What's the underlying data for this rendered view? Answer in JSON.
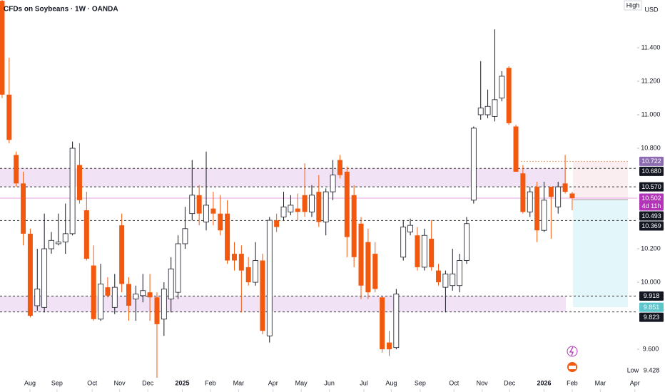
{
  "chart_data": {
    "type": "candlestick",
    "title": "CFDs on Soybeans · 1W · OANDA",
    "currency": "USD",
    "high_label": "High",
    "low_label": "Low",
    "low_value": 9.428,
    "up_color": "#ffffff",
    "down_color": "#f2590f",
    "ohlc": {
      "open": [
        11.68,
        11.12,
        10.76,
        10.59,
        10.29,
        9.86,
        9.85,
        10.2,
        10.23,
        10.24,
        10.29,
        10.7,
        10.43,
        10.1,
        9.78,
        9.97,
        9.85,
        10.34,
        9.99,
        9.9,
        9.92,
        9.94,
        9.91,
        9.78,
        9.9,
        9.94,
        10.23,
        10.41,
        10.52,
        10.36,
        10.44,
        10.41,
        10.41,
        10.17,
        10.17,
        10.09,
        10.0,
        10.13,
        9.68,
        10.37,
        10.39,
        10.42,
        10.44,
        10.52,
        10.42,
        10.54,
        10.36,
        10.54,
        10.73,
        10.66,
        10.52,
        10.35,
        10.24,
        10.17,
        9.91,
        9.64,
        9.61,
        10.15,
        10.3,
        10.28,
        10.09,
        10.26,
        10.07,
        9.97,
        9.98,
        9.98,
        10.13,
        10.49,
        11.0,
        11.0,
        10.99,
        11.1,
        11.28,
        10.93,
        10.65,
        10.42,
        10.57,
        10.31,
        10.57,
        10.45,
        10.59,
        10.53
      ],
      "high": [
        11.69,
        11.34,
        10.78,
        10.66,
        10.32,
        10.2,
        10.41,
        10.3,
        10.41,
        10.47,
        10.84,
        10.83,
        10.54,
        10.22,
        10.11,
        10.03,
        10.05,
        10.41,
        10.03,
        9.98,
        10.05,
        10.05,
        9.94,
        10.0,
        10.15,
        10.28,
        10.45,
        10.73,
        10.58,
        10.78,
        10.54,
        10.52,
        10.49,
        10.24,
        10.22,
        10.15,
        10.24,
        10.17,
        10.39,
        10.41,
        10.54,
        10.52,
        10.53,
        10.71,
        10.58,
        10.64,
        10.56,
        10.73,
        10.76,
        10.69,
        10.58,
        10.39,
        10.32,
        10.24,
        9.92,
        9.71,
        9.96,
        10.37,
        10.38,
        10.33,
        10.32,
        10.37,
        10.11,
        10.07,
        10.2,
        10.17,
        10.39,
        10.93,
        11.32,
        11.15,
        11.51,
        11.26,
        11.29,
        10.94,
        10.7,
        10.57,
        10.6,
        10.6,
        10.57,
        10.6,
        10.76,
        10.54
      ],
      "low": [
        11.1,
        10.83,
        10.57,
        10.22,
        9.79,
        9.83,
        9.82,
        10.17,
        10.22,
        10.17,
        10.28,
        10.47,
        10.13,
        9.77,
        9.77,
        9.91,
        9.81,
        9.94,
        9.77,
        9.77,
        9.88,
        9.77,
        9.43,
        9.68,
        9.82,
        9.9,
        10.2,
        10.37,
        10.34,
        10.31,
        10.34,
        10.28,
        10.11,
        10.07,
        9.82,
        9.98,
        9.98,
        9.69,
        9.64,
        10.3,
        10.37,
        10.4,
        10.37,
        10.39,
        10.39,
        10.33,
        10.28,
        10.49,
        10.62,
        10.15,
        10.09,
        9.9,
        9.9,
        9.94,
        9.58,
        9.56,
        9.6,
        10.13,
        10.28,
        10.07,
        10.07,
        10.07,
        9.98,
        9.82,
        9.95,
        9.94,
        10.11,
        10.47,
        10.97,
        10.98,
        10.96,
        11.08,
        10.94,
        10.66,
        10.41,
        10.39,
        10.24,
        10.3,
        10.26,
        10.41,
        10.53,
        10.43
      ],
      "close": [
        11.12,
        10.85,
        10.59,
        10.29,
        9.8,
        9.96,
        10.2,
        10.25,
        10.24,
        10.29,
        10.8,
        10.49,
        10.14,
        9.78,
        9.99,
        9.92,
        9.97,
        9.99,
        9.86,
        9.93,
        9.95,
        9.91,
        9.75,
        9.96,
        10.08,
        10.23,
        10.32,
        10.52,
        10.41,
        10.46,
        10.41,
        10.31,
        10.13,
        10.13,
        10.07,
        10.0,
        10.13,
        9.71,
        10.37,
        10.33,
        10.45,
        10.46,
        10.42,
        10.42,
        10.52,
        10.36,
        10.54,
        10.64,
        10.64,
        10.27,
        10.15,
        9.98,
        9.94,
        9.96,
        9.6,
        9.6,
        9.93,
        10.33,
        10.34,
        10.09,
        10.28,
        10.09,
        10.0,
        10.05,
        10.05,
        10.13,
        10.35,
        10.92,
        11.04,
        11.05,
        11.09,
        11.23,
        10.95,
        10.66,
        10.42,
        10.54,
        10.31,
        10.49,
        10.51,
        10.57,
        10.54,
        10.502
      ]
    },
    "xlim": [
      -0.3,
      87.9
    ],
    "xticks": [
      {
        "value": 3.96,
        "label": "Aug"
      },
      {
        "value": 7.8,
        "label": "Sep"
      },
      {
        "value": 12.8,
        "label": "Oct"
      },
      {
        "value": 16.7,
        "label": "Nov"
      },
      {
        "value": 20.7,
        "label": "Dec"
      },
      {
        "value": 25.6,
        "label": "2025",
        "bold": true
      },
      {
        "value": 29.6,
        "label": "Feb"
      },
      {
        "value": 33.6,
        "label": "Mar"
      },
      {
        "value": 38.5,
        "label": "Apr"
      },
      {
        "value": 42.5,
        "label": "May"
      },
      {
        "value": 46.5,
        "label": "Jun"
      },
      {
        "value": 51.4,
        "label": "Jul"
      },
      {
        "value": 55.3,
        "label": "Aug"
      },
      {
        "value": 59.4,
        "label": "Sep"
      },
      {
        "value": 64.2,
        "label": "Oct"
      },
      {
        "value": 68.2,
        "label": "Nov"
      },
      {
        "value": 72.1,
        "label": "Dec"
      },
      {
        "value": 77.0,
        "label": "2026",
        "bold": true
      },
      {
        "value": 81.0,
        "label": "Feb"
      },
      {
        "value": 85.0,
        "label": "Mar"
      },
      {
        "value": 89.9,
        "label": "Apr"
      }
    ],
    "ylim": [
      9.345,
      11.685
    ],
    "yticks": [
      {
        "value": 11.4,
        "label": "11.400"
      },
      {
        "value": 11.2,
        "label": "11.200"
      },
      {
        "value": 11.0,
        "label": "11.000"
      },
      {
        "value": 10.8,
        "label": "10.800"
      },
      {
        "value": 10.2,
        "label": "10.200"
      },
      {
        "value": 10.0,
        "label": "10.000"
      },
      {
        "value": 9.6,
        "label": "9.600"
      }
    ],
    "zones": [
      {
        "from": 10.57,
        "to": 10.68,
        "color": "#f1e3f5"
      },
      {
        "from": 9.823,
        "to": 9.918,
        "color": "#f1e3f5"
      }
    ],
    "projection": {
      "stop": 10.722,
      "entry": 10.493,
      "target": 9.851,
      "stop_color": "#fbeef0",
      "target_color": "#e3f6fa"
    },
    "countdown": "4d 11h",
    "levels": [
      {
        "value": 10.722,
        "color": "#8c6bb1",
        "line": "dotted",
        "line_color": "#f4a36b"
      },
      {
        "value": 10.68,
        "label": "10.680",
        "color": "#131722",
        "line": "dashed",
        "line_color": "#333333"
      },
      {
        "value": 10.57,
        "label": "10.570",
        "color": "#131722",
        "line": "dashed",
        "line_color": "#333333"
      },
      {
        "value": 10.502,
        "color": "#b235b8",
        "line": "solid",
        "line_color": "#e9a6ea",
        "countdown": true
      },
      {
        "value": 10.493,
        "color": "#131722",
        "line": "entry",
        "line_color": "#9e9e9e"
      },
      {
        "value": 10.369,
        "color": "#131722",
        "line": "dashed",
        "line_color": "#333333"
      },
      {
        "value": 9.918,
        "color": "#131722",
        "line": "dashed",
        "line_color": "#333333"
      },
      {
        "value": 9.851,
        "color": "#5cc6cc",
        "line": "none",
        "line_color": "#5cc6cc"
      },
      {
        "value": 9.823,
        "color": "#131722",
        "line": "dashed",
        "line_color": "#333333"
      }
    ]
  }
}
